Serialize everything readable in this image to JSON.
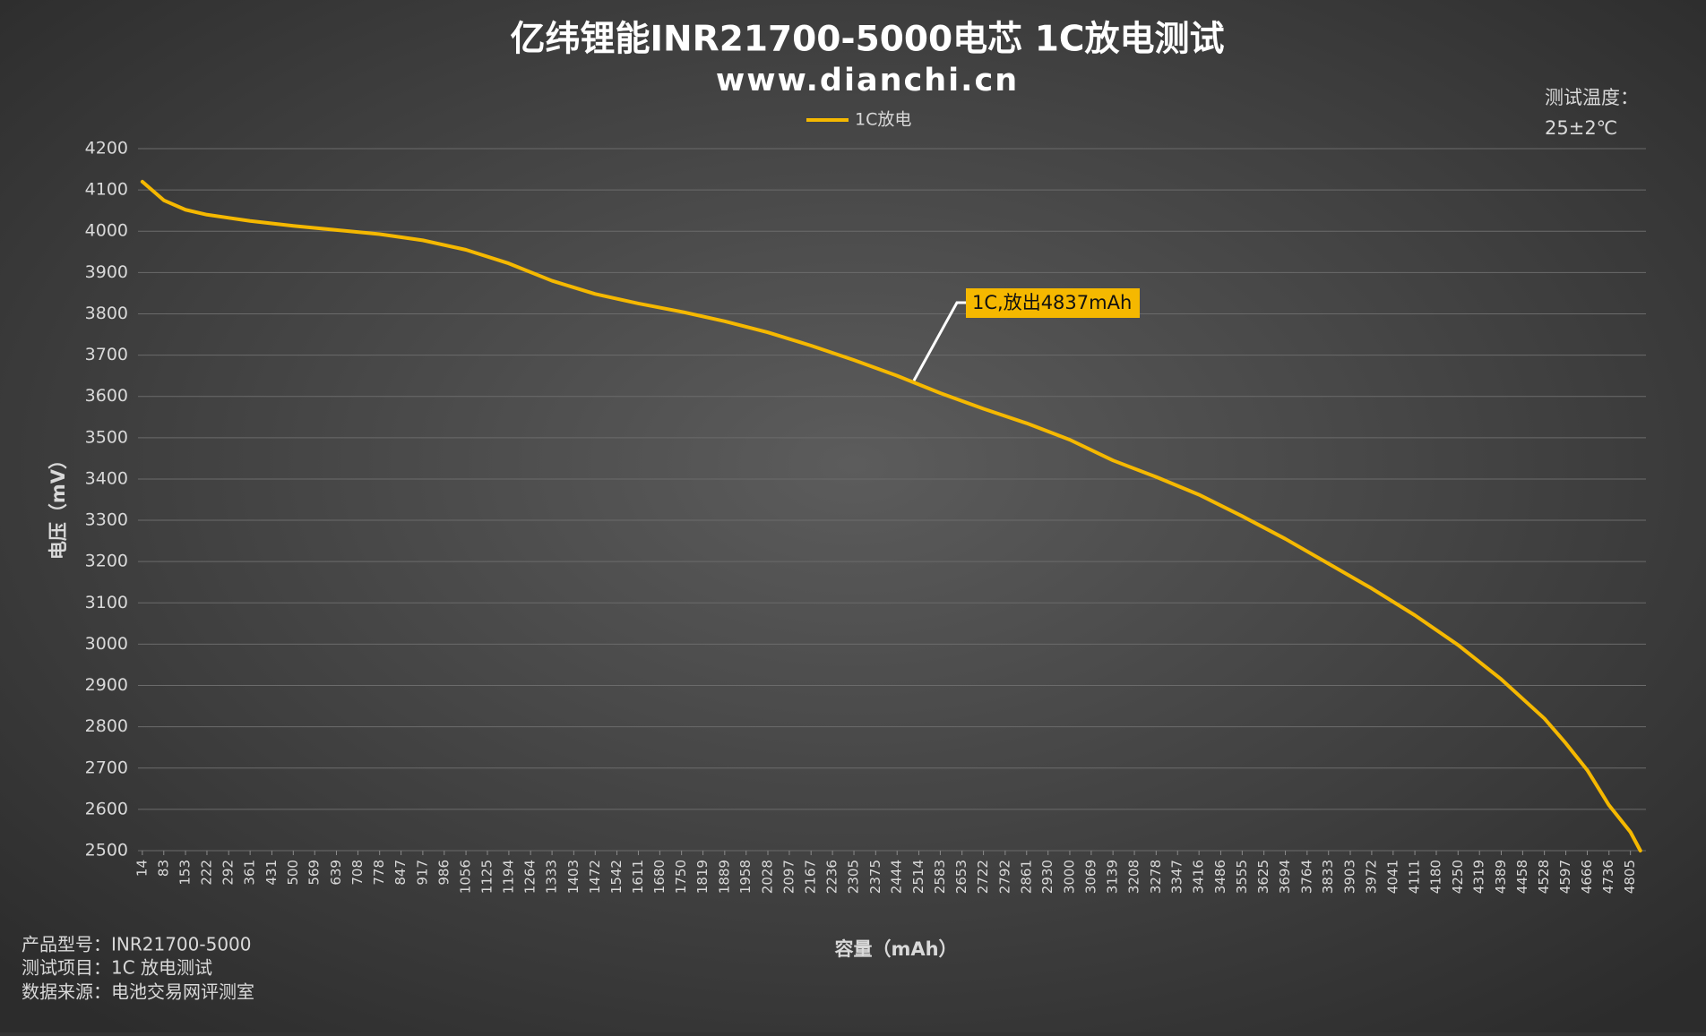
{
  "chart_data": {
    "type": "line",
    "title": "亿纬锂能INR21700-5000电芯 1C放电测试",
    "subtitle": "www.dianchi.cn",
    "x_label": "容量（mAh）",
    "y_label": "电压（mV）",
    "temperature_notes": [
      "测试温度：",
      "25±2℃"
    ],
    "notes": [
      "产品型号：INR21700-5000",
      "测试项目：1C 放电测试",
      "数据来源：电池交易网评测室"
    ],
    "annotation": "1C,放出4837mAh",
    "legend": "top",
    "grid": true,
    "x": [
      14,
      83,
      153,
      222,
      361,
      500,
      639,
      778,
      917,
      1056,
      1194,
      1333,
      1472,
      1611,
      1750,
      1889,
      2028,
      2167,
      2305,
      2444,
      2583,
      2722,
      2861,
      3000,
      3139,
      3278,
      3416,
      3555,
      3694,
      3833,
      3972,
      4111,
      4250,
      4389,
      4528,
      4597,
      4666,
      4736,
      4805,
      4837
    ],
    "series": [
      {
        "name": "1C放电",
        "color": "#f5b800",
        "values": [
          4120,
          4075,
          4052,
          4040,
          4025,
          4013,
          4003,
          3993,
          3978,
          3955,
          3922,
          3880,
          3848,
          3825,
          3805,
          3782,
          3755,
          3723,
          3688,
          3650,
          3608,
          3570,
          3535,
          3495,
          3445,
          3405,
          3362,
          3310,
          3255,
          3195,
          3135,
          3070,
          2998,
          2915,
          2820,
          2760,
          2695,
          2610,
          2545,
          2500
        ]
      }
    ],
    "xlim": [
      0,
      4855
    ],
    "xticks": [
      14,
      83,
      153,
      222,
      292,
      361,
      431,
      500,
      569,
      639,
      708,
      778,
      847,
      917,
      986,
      1056,
      1125,
      1194,
      1264,
      1333,
      1403,
      1472,
      1542,
      1611,
      1680,
      1750,
      1819,
      1889,
      1958,
      2028,
      2097,
      2167,
      2236,
      2305,
      2375,
      2444,
      2514,
      2583,
      2653,
      2722,
      2792,
      2861,
      2930,
      3000,
      3069,
      3139,
      3208,
      3278,
      3347,
      3416,
      3486,
      3555,
      3625,
      3694,
      3764,
      3833,
      3903,
      3972,
      4041,
      4111,
      4180,
      4250,
      4319,
      4389,
      4458,
      4528,
      4597,
      4666,
      4736,
      4805
    ],
    "ylim": [
      2500,
      4200
    ],
    "yticks": [
      2500,
      2600,
      2700,
      2800,
      2900,
      3000,
      3100,
      3200,
      3300,
      3400,
      3500,
      3600,
      3700,
      3800,
      3900,
      4000,
      4100,
      4200
    ]
  }
}
